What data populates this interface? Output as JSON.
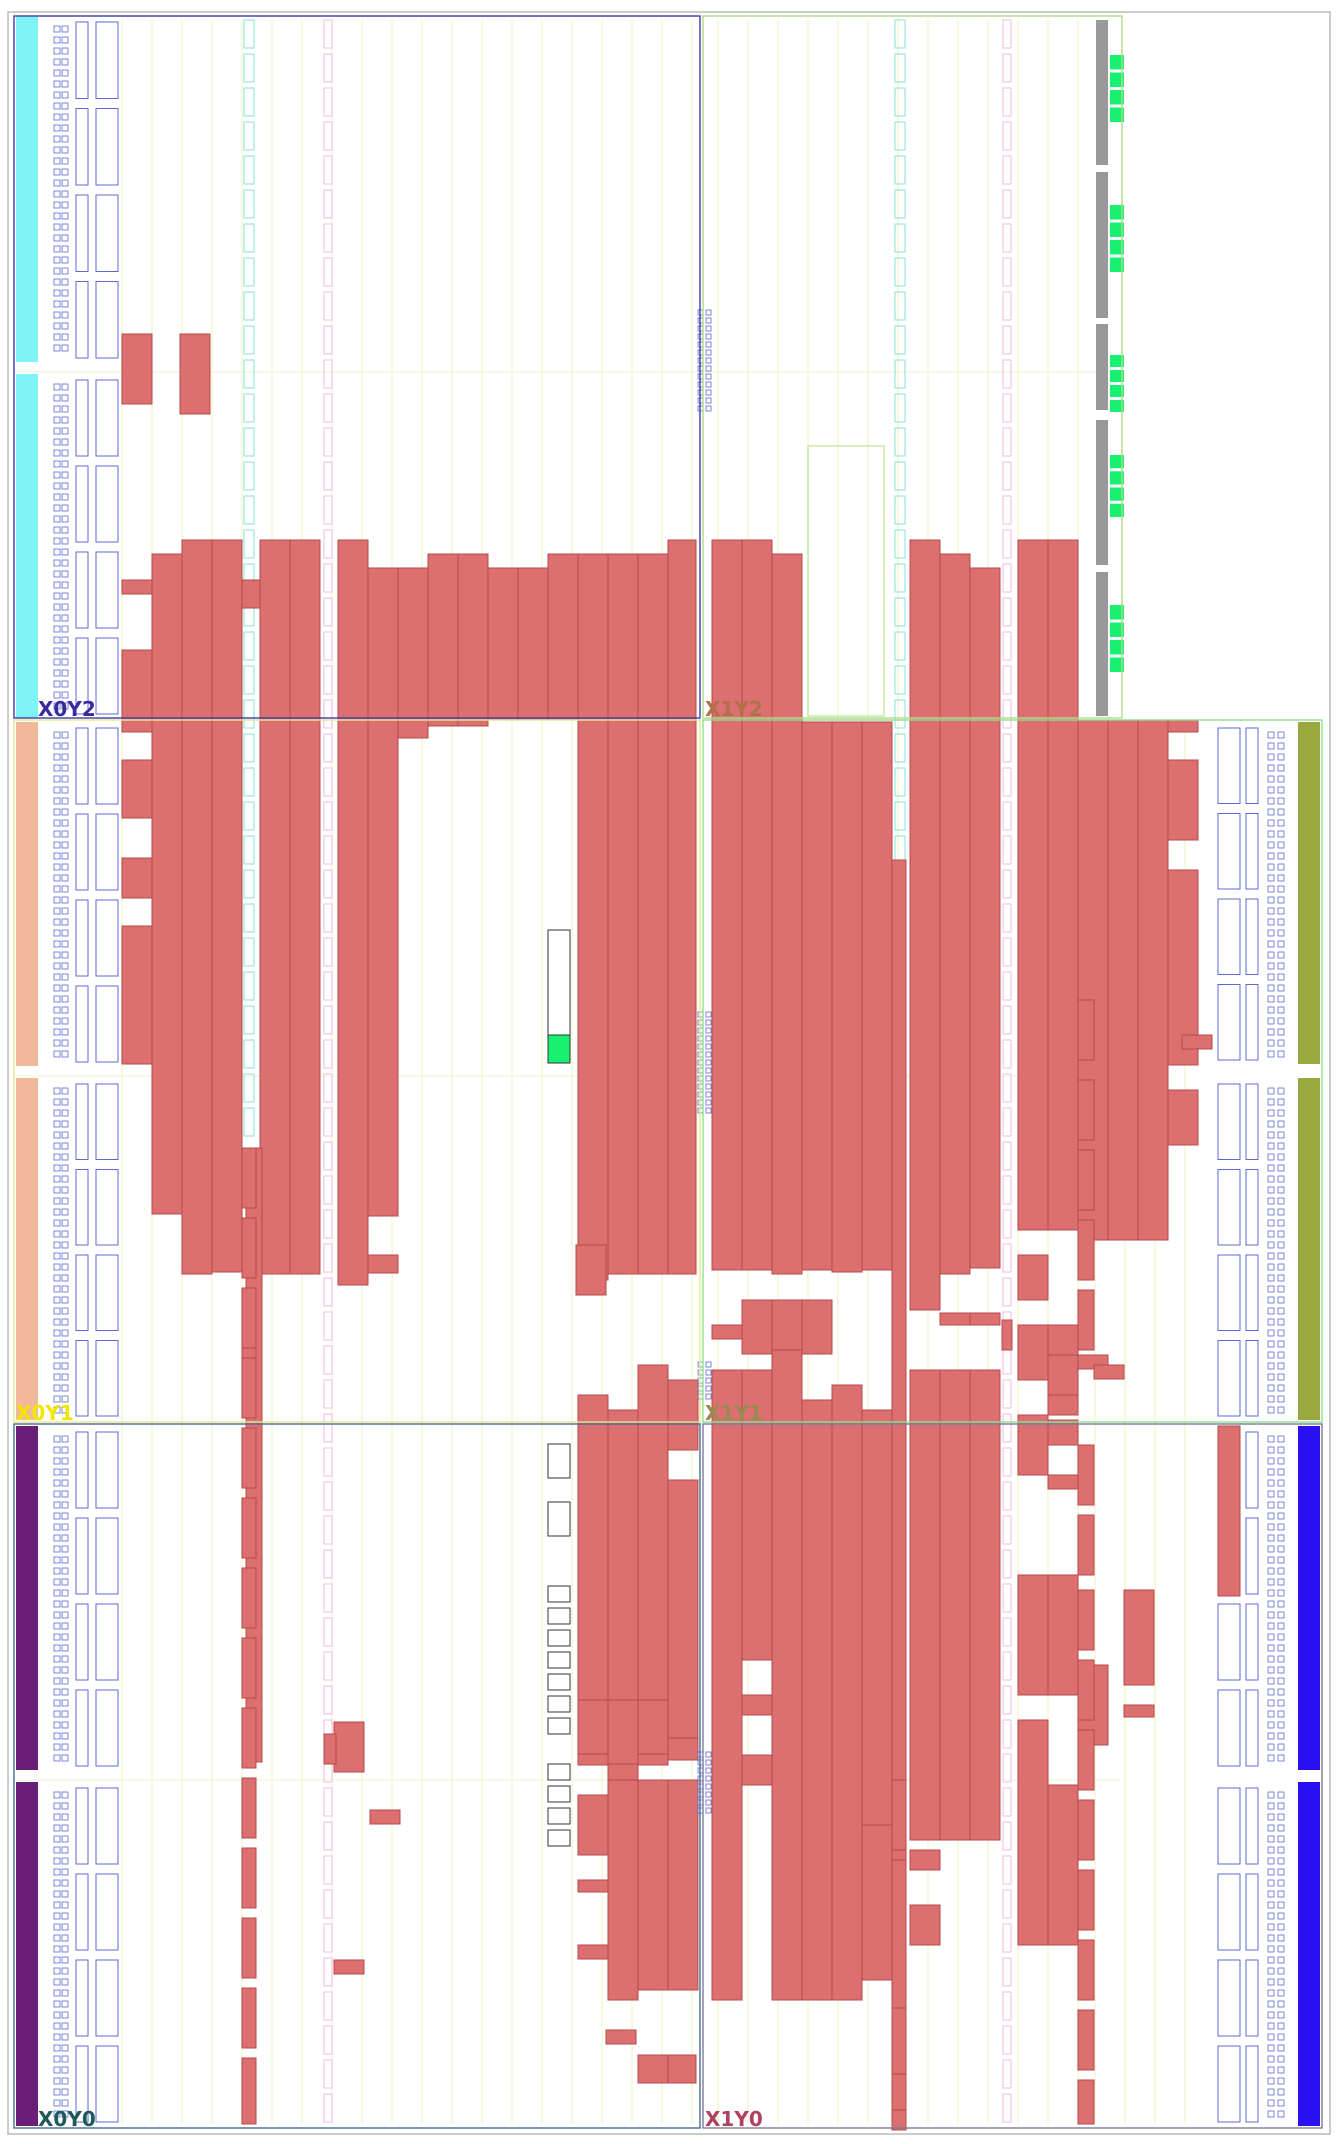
{
  "regions": [
    {
      "id": "X0Y2",
      "label": "X0Y2",
      "col": 0,
      "row": 2,
      "border_color": "#3a3ab0",
      "label_color": "#3a2a9e"
    },
    {
      "id": "X1Y2",
      "label": "X1Y2",
      "col": 1,
      "row": 2,
      "border_color": "#b5d98a",
      "label_color": "#b0704a"
    },
    {
      "id": "X0Y1",
      "label": "X0Y1",
      "col": 0,
      "row": 1,
      "border_color": "#e6e68a",
      "label_color": "#f2e600"
    },
    {
      "id": "X1Y1",
      "label": "X1Y1",
      "col": 1,
      "row": 1,
      "border_color": "#8fe08f",
      "label_color": "#9a8a50"
    },
    {
      "id": "X0Y0",
      "label": "X0Y0",
      "col": 0,
      "row": 0,
      "border_color": "#4a6a9a",
      "label_color": "#1f5a5a"
    },
    {
      "id": "X1Y0",
      "label": "X1Y0",
      "col": 1,
      "row": 0,
      "border_color": "#7a7a9a",
      "label_color": "#b04060"
    }
  ],
  "colors": {
    "placed_logic": "#dc7070",
    "placed_logic_edge": "#b84848",
    "io_bank_cyan": "#7df3f5",
    "io_bank_peach": "#f2b89a",
    "io_bank_purple": "#6b1e78",
    "io_bank_olive": "#9aa840",
    "io_bank_blue": "#2a10f0",
    "gt_gray": "#999999",
    "gt_green": "#18f070",
    "clb_column": "#f2f2cc",
    "bram_column": "#8ae0d8",
    "dsp_column": "#f2b8e6",
    "pin_outline": "#5a6ad0"
  }
}
